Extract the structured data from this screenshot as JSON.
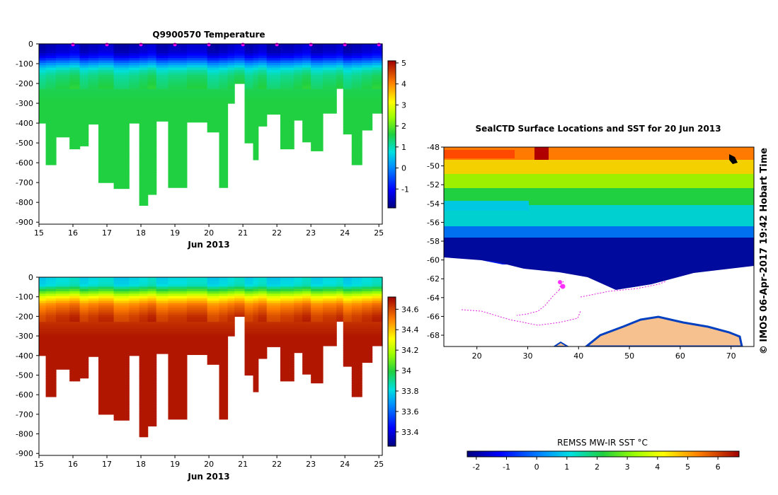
{
  "chart_data": [
    {
      "type": "heatmap",
      "name": "temperature-section",
      "title": "Q9900570  Temperature",
      "xlabel": "Jun 2013",
      "x_ticks": [
        15,
        16,
        17,
        18,
        19,
        20,
        21,
        22,
        23,
        24,
        25
      ],
      "xlim": [
        15.0,
        25.1
      ],
      "y_ticks": [
        0,
        -100,
        -200,
        -300,
        -400,
        -500,
        -600,
        -700,
        -800,
        -900
      ],
      "ylim": [
        -910,
        0
      ],
      "colorbar": {
        "ticks": [
          5,
          4,
          3,
          2,
          1,
          0,
          -1
        ],
        "range": [
          -1.9,
          5.1
        ]
      },
      "markers_days": [
        16,
        17,
        18,
        19,
        20,
        21,
        22,
        23,
        24,
        25
      ],
      "profiles": [
        {
          "x0": 15.0,
          "x1": 15.2,
          "depth": 400
        },
        {
          "x0": 15.2,
          "x1": 15.5,
          "depth": 610
        },
        {
          "x0": 15.5,
          "x1": 15.9,
          "depth": 470
        },
        {
          "x0": 15.9,
          "x1": 16.2,
          "depth": 530
        },
        {
          "x0": 16.2,
          "x1": 16.45,
          "depth": 515
        },
        {
          "x0": 16.45,
          "x1": 16.75,
          "depth": 405
        },
        {
          "x0": 16.75,
          "x1": 17.2,
          "depth": 700
        },
        {
          "x0": 17.2,
          "x1": 17.65,
          "depth": 730
        },
        {
          "x0": 17.65,
          "x1": 17.95,
          "depth": 400
        },
        {
          "x0": 17.95,
          "x1": 18.2,
          "depth": 815
        },
        {
          "x0": 18.2,
          "x1": 18.45,
          "depth": 760
        },
        {
          "x0": 18.45,
          "x1": 18.8,
          "depth": 390
        },
        {
          "x0": 18.8,
          "x1": 19.35,
          "depth": 725
        },
        {
          "x0": 19.35,
          "x1": 19.95,
          "depth": 395
        },
        {
          "x0": 19.95,
          "x1": 20.3,
          "depth": 445
        },
        {
          "x0": 20.3,
          "x1": 20.55,
          "depth": 725
        },
        {
          "x0": 20.55,
          "x1": 20.75,
          "depth": 300
        },
        {
          "x0": 20.75,
          "x1": 21.05,
          "depth": 200
        },
        {
          "x0": 21.05,
          "x1": 21.3,
          "depth": 500
        },
        {
          "x0": 21.3,
          "x1": 21.45,
          "depth": 585
        },
        {
          "x0": 21.45,
          "x1": 21.7,
          "depth": 415
        },
        {
          "x0": 21.7,
          "x1": 22.1,
          "depth": 355
        },
        {
          "x0": 22.1,
          "x1": 22.5,
          "depth": 530
        },
        {
          "x0": 22.5,
          "x1": 22.75,
          "depth": 385
        },
        {
          "x0": 22.75,
          "x1": 23.0,
          "depth": 495
        },
        {
          "x0": 23.0,
          "x1": 23.35,
          "depth": 540
        },
        {
          "x0": 23.35,
          "x1": 23.75,
          "depth": 350
        },
        {
          "x0": 23.75,
          "x1": 23.95,
          "depth": 225
        },
        {
          "x0": 23.95,
          "x1": 24.2,
          "depth": 455
        },
        {
          "x0": 24.2,
          "x1": 24.5,
          "depth": 610
        },
        {
          "x0": 24.5,
          "x1": 24.8,
          "depth": 435
        },
        {
          "x0": 24.8,
          "x1": 25.1,
          "depth": 350
        }
      ],
      "deep_value": 1.6,
      "profile_shape": [
        {
          "depth": 0,
          "value": -1.5
        },
        {
          "depth": 40,
          "value": -1.4
        },
        {
          "depth": 70,
          "value": -0.9
        },
        {
          "depth": 90,
          "value": -0.2
        },
        {
          "depth": 110,
          "value": 0.4
        },
        {
          "depth": 130,
          "value": 0.9
        },
        {
          "depth": 160,
          "value": 1.25
        },
        {
          "depth": 220,
          "value": 1.5
        },
        {
          "depth": 300,
          "value": 1.6
        }
      ]
    },
    {
      "type": "heatmap",
      "name": "salinity-section",
      "xlabel": "Jun 2013",
      "x_ticks": [
        15,
        16,
        17,
        18,
        19,
        20,
        21,
        22,
        23,
        24,
        25
      ],
      "xlim": [
        15.0,
        25.1
      ],
      "y_ticks": [
        0,
        -100,
        -200,
        -300,
        -400,
        -500,
        -600,
        -700,
        -800,
        -900
      ],
      "ylim": [
        -910,
        0
      ],
      "colorbar": {
        "ticks": [
          34.6,
          34.4,
          34.2,
          34,
          33.8,
          33.6,
          33.4
        ],
        "range": [
          33.26,
          34.72
        ]
      },
      "deep_value": 34.68,
      "profile_shape": [
        {
          "depth": 0,
          "value": 33.8
        },
        {
          "depth": 40,
          "value": 33.82
        },
        {
          "depth": 70,
          "value": 34.05
        },
        {
          "depth": 100,
          "value": 34.3
        },
        {
          "depth": 140,
          "value": 34.5
        },
        {
          "depth": 200,
          "value": 34.62
        },
        {
          "depth": 300,
          "value": 34.68
        }
      ]
    },
    {
      "type": "heatmap",
      "name": "sst-map",
      "title": "SealCTD Surface Locations and SST for 20 Jun 2013",
      "x_ticks": [
        20,
        30,
        40,
        50,
        60,
        70
      ],
      "xlim": [
        13.5,
        74.5
      ],
      "y_ticks": [
        -48,
        -50,
        -52,
        -54,
        -56,
        -58,
        -60,
        -62,
        -64,
        -66,
        -68
      ],
      "ylim": [
        -69.2,
        -48
      ],
      "colorbar_label": "REMSS MW-IR SST °C",
      "colorbar_ticks": [
        -2,
        -1,
        0,
        1,
        2,
        3,
        4,
        5,
        6
      ],
      "colorbar_range": [
        -2.3,
        6.7
      ],
      "credit": "© IMOS 06-Apr-2017 19:42 Hobart Time"
    }
  ]
}
